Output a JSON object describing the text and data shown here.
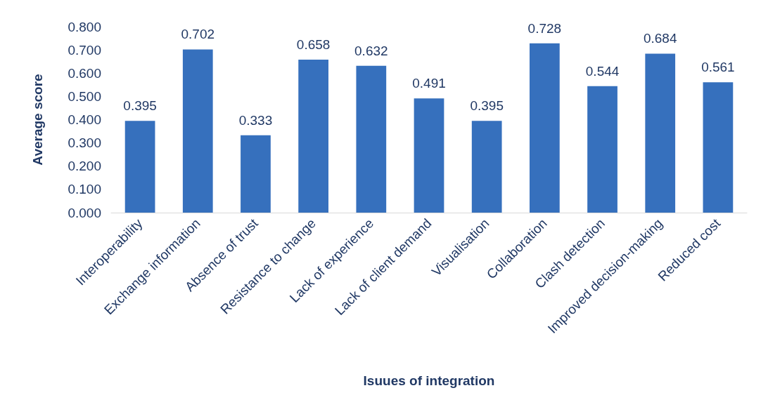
{
  "chart_data": {
    "type": "bar",
    "xlabel": "Isuues of integration",
    "ylabel": "Average score",
    "categories": [
      "Interoperability",
      "Exchange information",
      "Absence of trust",
      "Resistance to change",
      "Lack of experience",
      "Lack of client demand",
      "Visualisation",
      "Collaboration",
      "Clash detection",
      "Improved decision-making",
      "Reduced cost"
    ],
    "values": [
      0.395,
      0.702,
      0.333,
      0.658,
      0.632,
      0.491,
      0.395,
      0.728,
      0.544,
      0.684,
      0.561
    ],
    "color": "#3670bd",
    "ylim": [
      0,
      0.8
    ],
    "yticks": [
      {
        "value": 0,
        "label": "0.000"
      },
      {
        "value": 0.1,
        "label": "0.100"
      },
      {
        "value": 0.2,
        "label": "0.200"
      },
      {
        "value": 0.3,
        "label": "0.300"
      },
      {
        "value": 0.4,
        "label": "0.400"
      },
      {
        "value": 0.5,
        "label": "0.500"
      },
      {
        "value": 0.6,
        "label": "0.600"
      },
      {
        "value": 0.7,
        "label": "0.700"
      },
      {
        "value": 0.8,
        "label": "0.800"
      }
    ],
    "data_labels": true,
    "grid": false
  }
}
